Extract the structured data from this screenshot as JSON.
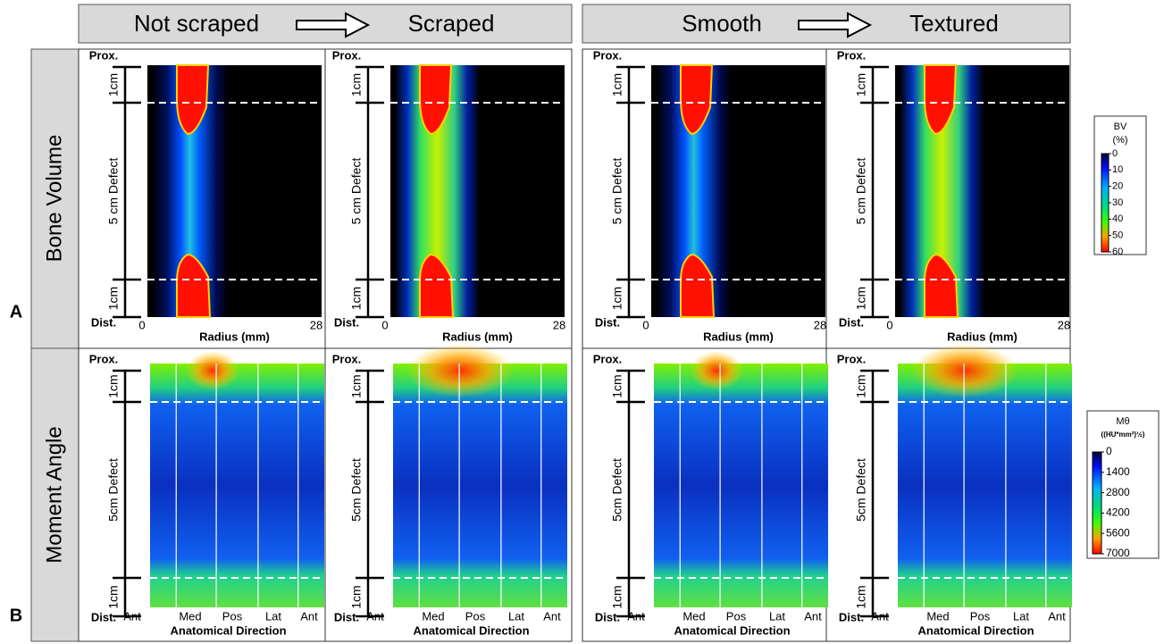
{
  "headers": [
    {
      "left": "Not scraped",
      "right": "Scraped"
    },
    {
      "left": "Smooth",
      "right": "Textured"
    }
  ],
  "rows": [
    {
      "letter": "A",
      "label": "Bone Volume"
    },
    {
      "letter": "B",
      "label": "Moment Angle"
    }
  ],
  "row_a_axes": {
    "top": "Prox.",
    "bottom": "Dist.",
    "segments": [
      "1cm",
      "5 cm Defect",
      "1cm"
    ],
    "x_min": "0",
    "x_max": "28",
    "x_label": "Radius (mm)"
  },
  "row_b_axes": {
    "top": "Prox.",
    "bottom": "Dist.",
    "segments": [
      "1cm",
      "5cm Defect",
      "1cm"
    ],
    "directions": [
      "Ant",
      "Med",
      "Pos",
      "Lat",
      "Ant"
    ],
    "x_label": "Anatomical Direction"
  },
  "legends": [
    {
      "title": "BV",
      "unit": "(%)",
      "ticks": [
        0,
        10,
        20,
        30,
        40,
        50,
        60
      ]
    },
    {
      "title": "Mθ",
      "unit": "((HU*mm²)½)",
      "ticks": [
        0,
        1400,
        2800,
        4200,
        5600,
        7000
      ]
    }
  ]
}
